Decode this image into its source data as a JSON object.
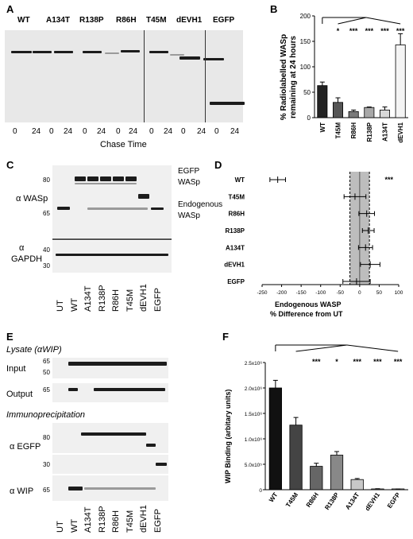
{
  "panelA": {
    "letter": "A",
    "lanes": [
      "WT",
      "A134T",
      "R138P",
      "R86H",
      "T45M",
      "dEVH1",
      "EGFP"
    ],
    "times": [
      "0",
      "24"
    ],
    "xlabel": "Chase Time"
  },
  "panelB": {
    "letter": "B",
    "ylabel_line1": "% Radiolabelled WASp",
    "ylabel_line2": "remaining at 24 hours",
    "sig": [
      "*",
      "***",
      "***",
      "***",
      "***"
    ]
  },
  "panelC": {
    "letter": "C",
    "row1_label": "α WASp",
    "row2_label_a": "α",
    "row2_label_b": "GAPDH",
    "mw": [
      "80",
      "65",
      "40",
      "30"
    ],
    "side_label_1": "EGFP",
    "side_label_2": "WASp",
    "side_label_3": "Endogenous",
    "side_label_4": "WASp",
    "lanes": [
      "UT",
      "WT",
      "A134T",
      "R138P",
      "R86H",
      "T45M",
      "dEVH1",
      "EGFP"
    ]
  },
  "panelD": {
    "letter": "D",
    "xlabel_line1": "Endogenous WASP",
    "xlabel_line2": "% Difference from UT",
    "sig": "***"
  },
  "panelE": {
    "letter": "E",
    "lysate": "Lysate (αWIP)",
    "input": "Input",
    "output": "Output",
    "ip": "Immunoprecipitation",
    "egfp": "α EGFP",
    "wip": "α WIP",
    "mw_input": [
      "65",
      "50"
    ],
    "mw_output": "65",
    "mw_egfp1": "80",
    "mw_egfp2": "30",
    "mw_wip": "65",
    "lanes": [
      "UT",
      "WT",
      "A134T",
      "R138P",
      "R86H",
      "T45M",
      "dEVH1",
      "EGFP"
    ]
  },
  "panelF": {
    "letter": "F",
    "ylabel": "WIP Binding (arbitary units)",
    "sig": [
      "***",
      "*",
      "***",
      "***",
      "***"
    ]
  },
  "chart_data": [
    {
      "type": "bar",
      "title": "",
      "xlabel": "",
      "ylabel": "% Radiolabelled WASp remaining at 24 hours",
      "categories": [
        "WT",
        "T45M",
        "R86H",
        "R138P",
        "A134T",
        "dEVH1"
      ],
      "values": [
        63,
        30,
        12,
        20,
        15,
        143
      ],
      "errors": [
        7,
        9,
        3,
        1,
        6,
        22
      ],
      "ylim": [
        0,
        200
      ],
      "yticks": [
        "0",
        "50",
        "100",
        "150",
        "200"
      ],
      "fills": [
        "#222222",
        "#555555",
        "#7a7a7a",
        "#a8a8a8",
        "#d8d8d8",
        "#f4f4f4"
      ]
    },
    {
      "type": "scatter",
      "title": "",
      "xlabel": "Endogenous WASP % Difference from UT",
      "ylabel": "",
      "categories": [
        "WT",
        "T45M",
        "R86H",
        "R138P",
        "A134T",
        "dEVH1",
        "EGFP"
      ],
      "values": [
        -210,
        -12,
        18,
        22,
        15,
        27,
        -8
      ],
      "errors": [
        20,
        28,
        20,
        15,
        18,
        25,
        35
      ],
      "xlim": [
        -250,
        100
      ],
      "xticks": [
        "-250",
        "-200",
        "-150",
        "-100",
        "-50",
        "0",
        "50",
        "100"
      ],
      "band": [
        -25,
        25
      ]
    },
    {
      "type": "bar",
      "title": "",
      "xlabel": "",
      "ylabel": "WIP Binding (arbitary units)",
      "categories": [
        "WT",
        "T45M",
        "R86H",
        "R138P",
        "A134T",
        "dEVH1",
        "EGFP"
      ],
      "values": [
        2000000,
        1270000,
        460000,
        680000,
        200000,
        15000,
        10000
      ],
      "errors": [
        150000,
        150000,
        60000,
        70000,
        20000,
        5000,
        5000
      ],
      "ylim": [
        0,
        2500000
      ],
      "yticks": [
        "0",
        "5.0x10⁵",
        "1.0x10⁶",
        "1.5x10⁶",
        "2.0x10⁶",
        "2.5x10⁶"
      ],
      "fills": [
        "#111111",
        "#444444",
        "#666666",
        "#888888",
        "#c8c8c8",
        "#e8e8e8",
        "#f2f2f2"
      ]
    }
  ]
}
